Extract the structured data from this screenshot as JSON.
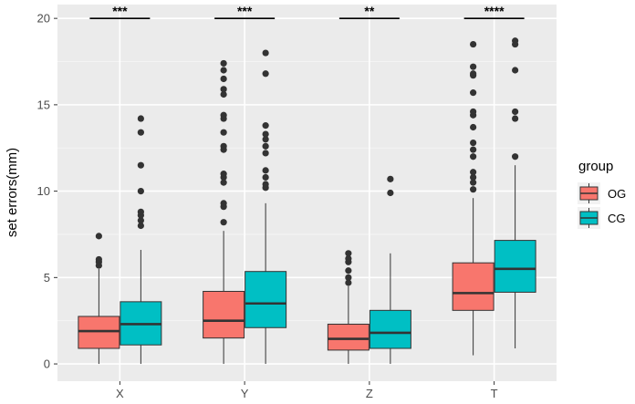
{
  "chart_data": {
    "type": "boxplot",
    "title": "",
    "xlabel": "",
    "ylabel": "set errors(mm)",
    "ylim": [
      -1,
      20.8
    ],
    "yticks": [
      0,
      5,
      10,
      15,
      20
    ],
    "grid": true,
    "legend_position": "right",
    "legend": {
      "title": "group",
      "entries": [
        {
          "name": "OG",
          "color": "#F8766D"
        },
        {
          "name": "CG",
          "color": "#00BFC4"
        }
      ]
    },
    "categories": [
      "X",
      "Y",
      "Z",
      "T"
    ],
    "significance": [
      "***",
      "***",
      "**",
      "****"
    ],
    "series": [
      {
        "name": "OG",
        "color": "#F8766D",
        "boxes": [
          {
            "low": 0,
            "q1": 0.9,
            "median": 1.9,
            "q3": 2.75,
            "high": 5.5,
            "outliers": [
              5.7,
              5.9,
              6.05,
              7.4
            ]
          },
          {
            "low": 0,
            "q1": 1.5,
            "median": 2.5,
            "q3": 4.2,
            "high": 7.7,
            "outliers": [
              8.2,
              9.1,
              9.3,
              10.5,
              10.8,
              11.0,
              12.4,
              12.6,
              13.4,
              14.2,
              14.4,
              15.6,
              15.9,
              16.5,
              17.0,
              17.4
            ]
          },
          {
            "low": 0,
            "q1": 0.8,
            "median": 1.45,
            "q3": 2.3,
            "high": 4.5,
            "outliers": [
              4.7,
              5.0,
              5.4,
              5.9,
              6.1,
              6.4
            ]
          },
          {
            "low": 0.5,
            "q1": 3.1,
            "median": 4.1,
            "q3": 5.85,
            "high": 9.6,
            "outliers": [
              10.1,
              10.5,
              10.8,
              11.1,
              12.0,
              12.4,
              12.8,
              13.7,
              14.4,
              14.6,
              15.7,
              16.7,
              16.8,
              17.2,
              18.5
            ]
          }
        ]
      },
      {
        "name": "CG",
        "color": "#00BFC4",
        "boxes": [
          {
            "low": 0,
            "q1": 1.1,
            "median": 2.3,
            "q3": 3.6,
            "high": 6.6,
            "outliers": [
              8.0,
              8.3,
              8.6,
              8.8,
              10.0,
              11.5,
              13.4,
              14.2
            ]
          },
          {
            "low": 0,
            "q1": 2.1,
            "median": 3.5,
            "q3": 5.35,
            "high": 9.3,
            "outliers": [
              10.2,
              10.4,
              10.8,
              11.2,
              12.2,
              12.6,
              13.0,
              13.3,
              13.8,
              16.8,
              18.0
            ]
          },
          {
            "low": 0,
            "q1": 0.9,
            "median": 1.8,
            "q3": 3.1,
            "high": 6.4,
            "outliers": [
              9.9,
              10.7
            ]
          },
          {
            "low": 0.9,
            "q1": 4.15,
            "median": 5.5,
            "q3": 7.15,
            "high": 11.5,
            "outliers": [
              12.0,
              14.2,
              14.6,
              17.0,
              18.5,
              18.7
            ]
          }
        ]
      }
    ]
  }
}
